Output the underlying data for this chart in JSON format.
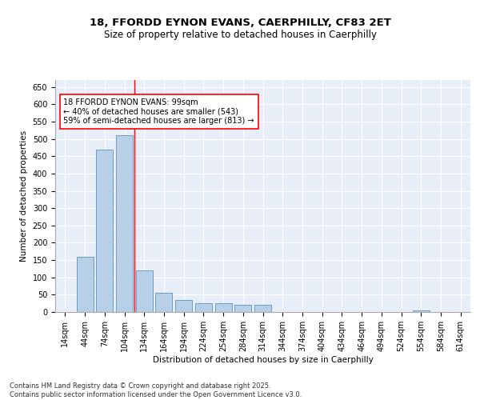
{
  "title_line1": "18, FFORDD EYNON EVANS, CAERPHILLY, CF83 2ET",
  "title_line2": "Size of property relative to detached houses in Caerphilly",
  "xlabel": "Distribution of detached houses by size in Caerphilly",
  "ylabel": "Number of detached properties",
  "categories": [
    "14sqm",
    "44sqm",
    "74sqm",
    "104sqm",
    "134sqm",
    "164sqm",
    "194sqm",
    "224sqm",
    "254sqm",
    "284sqm",
    "314sqm",
    "344sqm",
    "374sqm",
    "404sqm",
    "434sqm",
    "464sqm",
    "494sqm",
    "524sqm",
    "554sqm",
    "584sqm",
    "614sqm"
  ],
  "values": [
    0,
    160,
    470,
    510,
    120,
    55,
    35,
    25,
    25,
    20,
    20,
    0,
    0,
    0,
    0,
    0,
    0,
    0,
    5,
    0,
    0
  ],
  "bar_color": "#b8cfe8",
  "bar_edge_color": "#6a9ec8",
  "red_line_x": 3.5,
  "annotation_text": "18 FFORDD EYNON EVANS: 99sqm\n← 40% of detached houses are smaller (543)\n59% of semi-detached houses are larger (813) →",
  "ylim": [
    0,
    670
  ],
  "yticks": [
    0,
    50,
    100,
    150,
    200,
    250,
    300,
    350,
    400,
    450,
    500,
    550,
    600,
    650
  ],
  "footer_line1": "Contains HM Land Registry data © Crown copyright and database right 2025.",
  "footer_line2": "Contains public sector information licensed under the Open Government Licence v3.0.",
  "background_color": "#e8eef8",
  "grid_color": "white",
  "title_fontsize": 9.5,
  "subtitle_fontsize": 8.5,
  "axis_label_fontsize": 7.5,
  "tick_fontsize": 7,
  "annotation_fontsize": 7,
  "footer_fontsize": 6
}
